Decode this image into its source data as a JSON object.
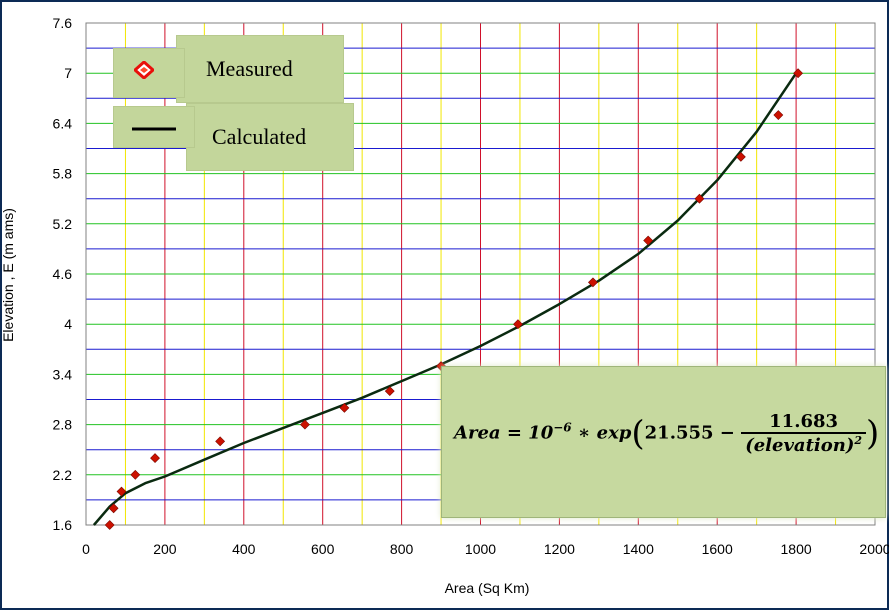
{
  "chart_data": {
    "type": "scatter",
    "xlabel": "Area (Sq Km)",
    "ylabel": "Elevation , E (m ams)",
    "xlim": [
      0,
      2000
    ],
    "ylim": [
      1.6,
      7.6
    ],
    "xticks": [
      "0",
      "200",
      "400",
      "600",
      "800",
      "1000",
      "1200",
      "1400",
      "1600",
      "1800",
      "2000"
    ],
    "yticks": [
      "1.6",
      "2.2",
      "2.8",
      "3.4",
      "4",
      "4.6",
      "5.2",
      "5.8",
      "6.4",
      "7",
      "7.6"
    ],
    "grid": true,
    "legend_position": "top-left",
    "series": [
      {
        "name": "Measured",
        "type": "scatter",
        "marker": "diamond",
        "color": "#cc1100",
        "x": [
          60,
          70,
          90,
          125,
          175,
          340,
          555,
          655,
          770,
          900,
          1095,
          1285,
          1425,
          1555,
          1660,
          1755,
          1805
        ],
        "y": [
          1.6,
          1.8,
          2.0,
          2.2,
          2.4,
          2.6,
          2.8,
          3.0,
          3.2,
          3.5,
          4.0,
          4.5,
          5.0,
          5.5,
          6.0,
          6.5,
          7.0
        ]
      },
      {
        "name": "Calculated",
        "type": "line",
        "color": "#0a2a10",
        "x": [
          20,
          60,
          100,
          150,
          200,
          300,
          400,
          500,
          600,
          700,
          800,
          900,
          1000,
          1100,
          1200,
          1300,
          1400,
          1500,
          1600,
          1700,
          1800
        ],
        "y": [
          1.6,
          1.82,
          1.98,
          2.1,
          2.18,
          2.38,
          2.58,
          2.76,
          2.94,
          3.12,
          3.32,
          3.52,
          3.74,
          3.98,
          4.24,
          4.52,
          4.84,
          5.24,
          5.72,
          6.3,
          7.0
        ]
      }
    ]
  },
  "legend": {
    "measured_label": "Measured",
    "calculated_label": "Calculated"
  },
  "equation": {
    "lhs": "Area = 10",
    "exp": "−6",
    "mid": " ∗ exp",
    "const": "21.555 −",
    "numerator": "11.683",
    "denominator": "(elevation)",
    "den_exp": "2"
  },
  "colors": {
    "frame": "#0c2a55",
    "legend_bg": "#c3d69b",
    "equation_bg": "#c6d99f"
  }
}
